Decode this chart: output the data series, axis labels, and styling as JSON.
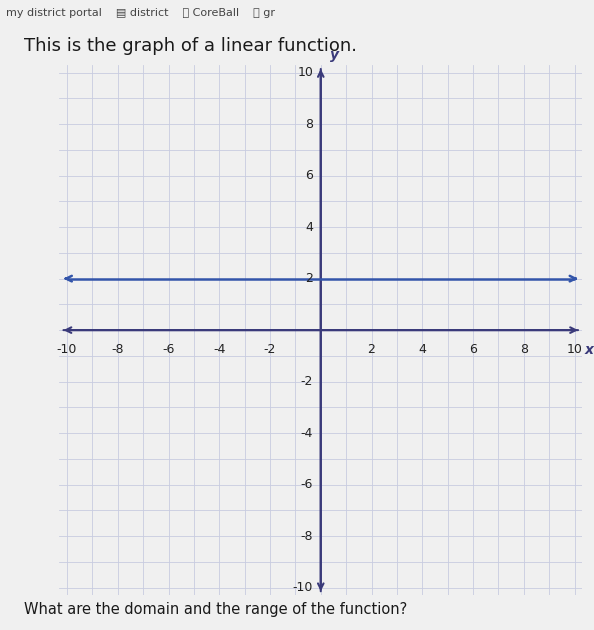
{
  "title": "This is the graph of a linear function.",
  "subtitle": "What are the domain and the range of the function?",
  "line_y": 2,
  "line_color": "#3355aa",
  "axis_arrow_color": "#3a3a7a",
  "line_width": 1.8,
  "xlim": [
    -10,
    10
  ],
  "ylim": [
    -10,
    10
  ],
  "xticks": [
    -10,
    -8,
    -6,
    -4,
    -2,
    2,
    4,
    6,
    8,
    10
  ],
  "yticks": [
    -10,
    -8,
    -6,
    -4,
    -2,
    2,
    4,
    6,
    8,
    10
  ],
  "grid_color": "#c8cce0",
  "grid_color_minor": "#dde0ee",
  "axis_color": "#3a3a7a",
  "background_color": "#f0f0f0",
  "plot_bg_color": "#f0f0f0",
  "xlabel": "x",
  "ylabel": "y",
  "title_fontsize": 13,
  "tick_fontsize": 9,
  "axis_label_fontsize": 10,
  "header_bg": "#e0e0e0",
  "title_color": "#1a1a1a",
  "subtitle_color": "#1a1a1a"
}
